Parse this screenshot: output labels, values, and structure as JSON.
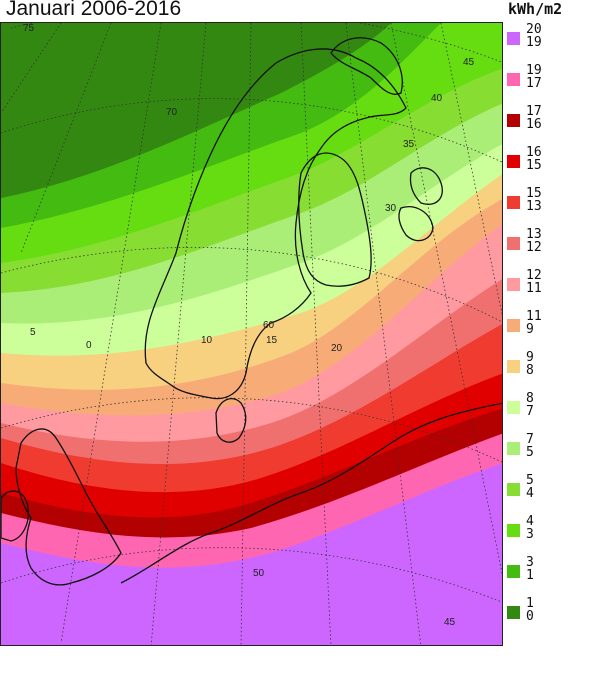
{
  "title": "Januari 2006-2016",
  "unit": "kWh/m2",
  "legend": [
    {
      "hi": "20",
      "lo": "19",
      "color": "#cc66ff"
    },
    {
      "hi": "19",
      "lo": "17",
      "color": "#ff66b2"
    },
    {
      "hi": "17",
      "lo": "16",
      "color": "#b30000"
    },
    {
      "hi": "16",
      "lo": "15",
      "color": "#e00000"
    },
    {
      "hi": "15",
      "lo": "13",
      "color": "#f03c30"
    },
    {
      "hi": "13",
      "lo": "12",
      "color": "#f07070"
    },
    {
      "hi": "12",
      "lo": "11",
      "color": "#ff9aa0"
    },
    {
      "hi": "11",
      "lo": "9",
      "color": "#f7ac78"
    },
    {
      "hi": "9",
      "lo": "8",
      "color": "#f7d080"
    },
    {
      "hi": "8",
      "lo": "7",
      "color": "#ccff99"
    },
    {
      "hi": "7",
      "lo": "5",
      "color": "#aaee77"
    },
    {
      "hi": "5",
      "lo": "4",
      "color": "#88dd33"
    },
    {
      "hi": "4",
      "lo": "3",
      "color": "#66dd11"
    },
    {
      "hi": "3",
      "lo": "1",
      "color": "#44bb11"
    },
    {
      "hi": "1",
      "lo": "0",
      "color": "#338811"
    }
  ],
  "grid_labels": {
    "lat75": "75",
    "lat70": "70",
    "lat60": "60",
    "lat50": "50",
    "lon45_top": "45",
    "lon40": "40",
    "lon35": "35",
    "lon30": "30",
    "lon20": "20",
    "lon15": "15",
    "lon10": "10",
    "lon5": "5",
    "lon0": "0",
    "lon45_bottom": "45"
  }
}
